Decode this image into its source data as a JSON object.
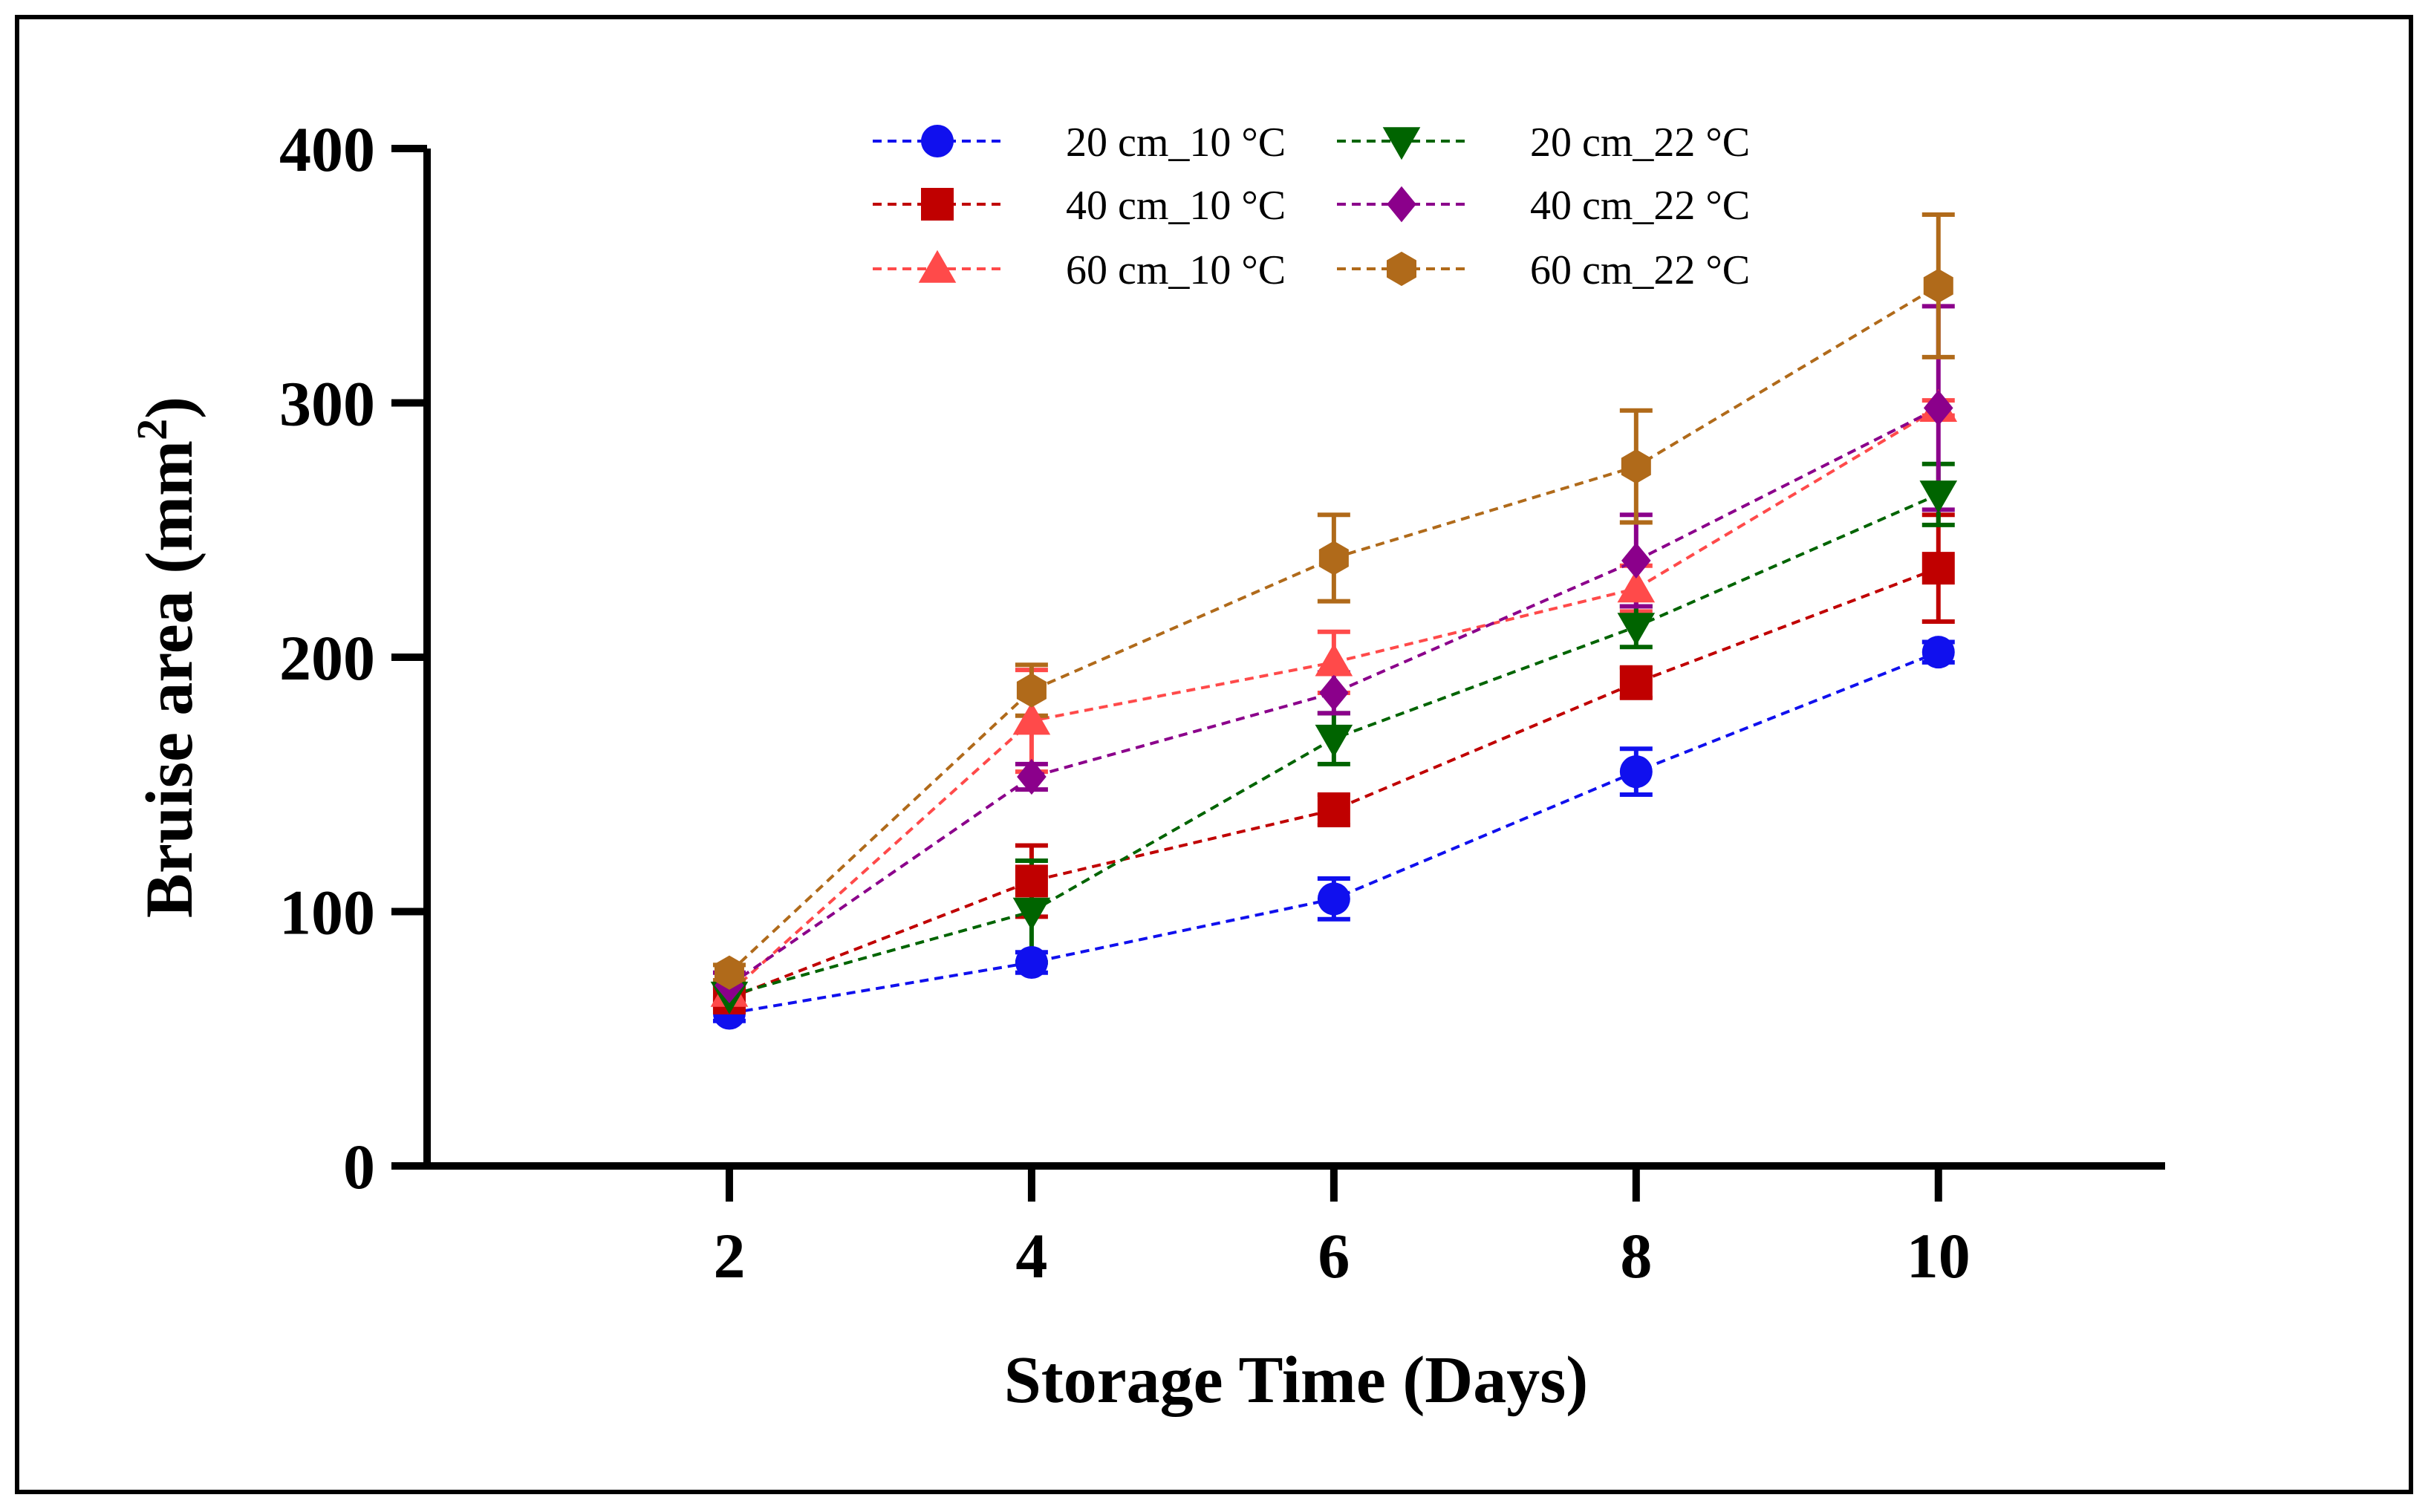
{
  "chart_data": {
    "type": "line",
    "title": "",
    "xlabel": "Storage Time (Days)",
    "ylabel": "Bruise area (mm",
    "ylabel_superscript": "2",
    "ylabel_suffix": ")",
    "xlim": [
      0,
      11.5
    ],
    "ylim": [
      0,
      400
    ],
    "x": [
      2,
      4,
      6,
      8,
      10
    ],
    "xticks": [
      "2",
      "4",
      "6",
      "8",
      "10"
    ],
    "yticks": [
      "0",
      "100",
      "200",
      "300",
      "400"
    ],
    "ytick_values": [
      0,
      100,
      200,
      300,
      400
    ],
    "grid": false,
    "legend_position": "top",
    "series": [
      {
        "name": "20 cm_10 °C",
        "color": "#1010ee",
        "marker": "circle",
        "values": [
          60,
          80,
          105,
          155,
          202
        ],
        "errors": [
          3,
          4,
          8,
          9,
          4
        ]
      },
      {
        "name": "40 cm_10 °C",
        "color": "#c00000",
        "marker": "square",
        "values": [
          66,
          112,
          140,
          190,
          235
        ],
        "errors": [
          4,
          14,
          6,
          6,
          21
        ]
      },
      {
        "name": "60 cm_10 °C",
        "color": "#ff4a4a",
        "marker": "triangle-up",
        "values": [
          68,
          175,
          198,
          227,
          298
        ],
        "errors": [
          3,
          20,
          12,
          9,
          3
        ]
      },
      {
        "name": "20 cm_22 °C",
        "color": "#006400",
        "marker": "triangle-down",
        "values": [
          67,
          100,
          168,
          212,
          264
        ],
        "errors": [
          3,
          20,
          10,
          8,
          12
        ]
      },
      {
        "name": "40 cm_22 °C",
        "color": "#8b008b",
        "marker": "diamond",
        "values": [
          71,
          153,
          186,
          238,
          298
        ],
        "errors": [
          5,
          5,
          8,
          18,
          40
        ]
      },
      {
        "name": "60 cm_22 °C",
        "color": "#b06a1a",
        "marker": "hexagon",
        "values": [
          76,
          187,
          239,
          275,
          346
        ],
        "errors": [
          3,
          10,
          17,
          22,
          28
        ]
      }
    ]
  }
}
